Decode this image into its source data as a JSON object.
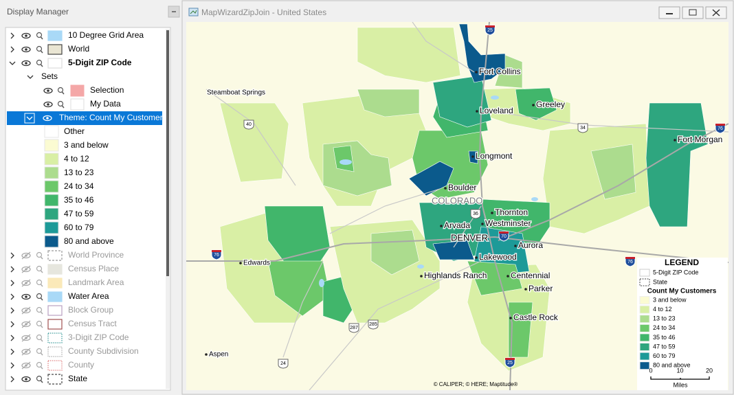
{
  "display_manager": {
    "title": "Display Manager",
    "layers": [
      {
        "label": "10 Degree Grid Area",
        "visible": true,
        "swatch": "#a9d9f7",
        "border": "#a9d9f7",
        "pattern": "solid"
      },
      {
        "label": "World",
        "visible": true,
        "swatch": "#e9e5d3",
        "border": "#444444",
        "pattern": "solid"
      },
      {
        "label": "5-Digit ZIP Code",
        "visible": true,
        "bold": true,
        "expanded": true,
        "swatch": "#ffffff",
        "border": "#ffffff",
        "pattern": "solid"
      },
      {
        "label": "World Province",
        "visible": false,
        "swatch": "#ffffff",
        "border": "#999999",
        "pattern": "dashed"
      },
      {
        "label": "Census Place",
        "visible": false,
        "swatch": "#e6e6de",
        "border": "#e6e6de",
        "pattern": "solid"
      },
      {
        "label": "Landmark Area",
        "visible": false,
        "swatch": "#fbe9b9",
        "border": "#fbe9b9",
        "pattern": "solid"
      },
      {
        "label": "Water Area",
        "visible": true,
        "swatch": "#a9d9f7",
        "border": "#a9d9f7",
        "pattern": "solid"
      },
      {
        "label": "Block Group",
        "visible": false,
        "swatch": "#ffffff",
        "border": "#b9a0c0",
        "pattern": "solid"
      },
      {
        "label": "Census Tract",
        "visible": false,
        "swatch": "#ffffff",
        "border": "#a05050",
        "pattern": "solid"
      },
      {
        "label": "3-Digit ZIP Code",
        "visible": false,
        "swatch": "#ffffff",
        "border": "#3a9a9a",
        "pattern": "dotted"
      },
      {
        "label": "County Subdivision",
        "visible": false,
        "swatch": "#ffffff",
        "border": "#aaaaaa",
        "pattern": "dotted"
      },
      {
        "label": "County",
        "visible": false,
        "swatch": "#ffffff",
        "border": "#e08080",
        "pattern": "dotted"
      },
      {
        "label": "State",
        "visible": true,
        "swatch": "#ffffff",
        "border": "#444444",
        "pattern": "dashed"
      }
    ],
    "sets_label": "Sets",
    "sets": [
      {
        "label": "Selection",
        "color": "#f4a7a7"
      },
      {
        "label": "My Data",
        "color": "#ffffff"
      }
    ],
    "theme": {
      "label": "Theme: Count My Customers",
      "classes": [
        {
          "label": "Other",
          "color": "#ffffff"
        },
        {
          "label": "3 and below",
          "color": "#fbfbd2"
        },
        {
          "label": "4 to 12",
          "color": "#d9efa5"
        },
        {
          "label": "13 to 23",
          "color": "#acdc8e"
        },
        {
          "label": "24 to 34",
          "color": "#6cc86a"
        },
        {
          "label": "35 to 46",
          "color": "#41b66b"
        },
        {
          "label": "47 to 59",
          "color": "#2ea67f"
        },
        {
          "label": "60 to 79",
          "color": "#1d9a98"
        },
        {
          "label": "80 and above",
          "color": "#0b5a8c"
        }
      ]
    }
  },
  "map_window": {
    "title": "MapWizardZipJoin - United States",
    "places": [
      "Steamboat Springs",
      "Fort Collins",
      "Loveland",
      "Greeley",
      "Fort Morgan",
      "Longmont",
      "Boulder",
      "COLORADO",
      "Thornton",
      "Arvada",
      "Westminster",
      "DENVER",
      "Aurora",
      "Lakewood",
      "Edwards",
      "Highlands Ranch",
      "Centennial",
      "Parker",
      "Castle Rock",
      "Aspen"
    ],
    "highway_shields": [
      {
        "label": "25",
        "kind": "interstate"
      },
      {
        "label": "25",
        "kind": "interstate"
      },
      {
        "label": "76",
        "kind": "interstate"
      },
      {
        "label": "76",
        "kind": "interstate"
      },
      {
        "label": "70",
        "kind": "interstate"
      },
      {
        "label": "76",
        "kind": "interstate"
      },
      {
        "label": "40",
        "kind": "us"
      },
      {
        "label": "34",
        "kind": "us"
      },
      {
        "label": "36",
        "kind": "us"
      },
      {
        "label": "287",
        "kind": "us"
      },
      {
        "label": "24",
        "kind": "us"
      },
      {
        "label": "285",
        "kind": "us"
      }
    ],
    "legend": {
      "title": "LEGEND",
      "layers": [
        "5-Digit ZIP Code",
        "State"
      ],
      "theme_title": "Count My Customers",
      "classes": [
        "3 and below",
        "4 to 12",
        "13 to 23",
        "24 to 34",
        "35 to 46",
        "47 to 59",
        "60 to 79",
        "80 and above"
      ]
    },
    "scale": {
      "ticks": [
        "0",
        "10",
        "20"
      ],
      "unit": "Miles"
    },
    "copyright": "© CALIPER; © HERE; Maptitude®"
  }
}
